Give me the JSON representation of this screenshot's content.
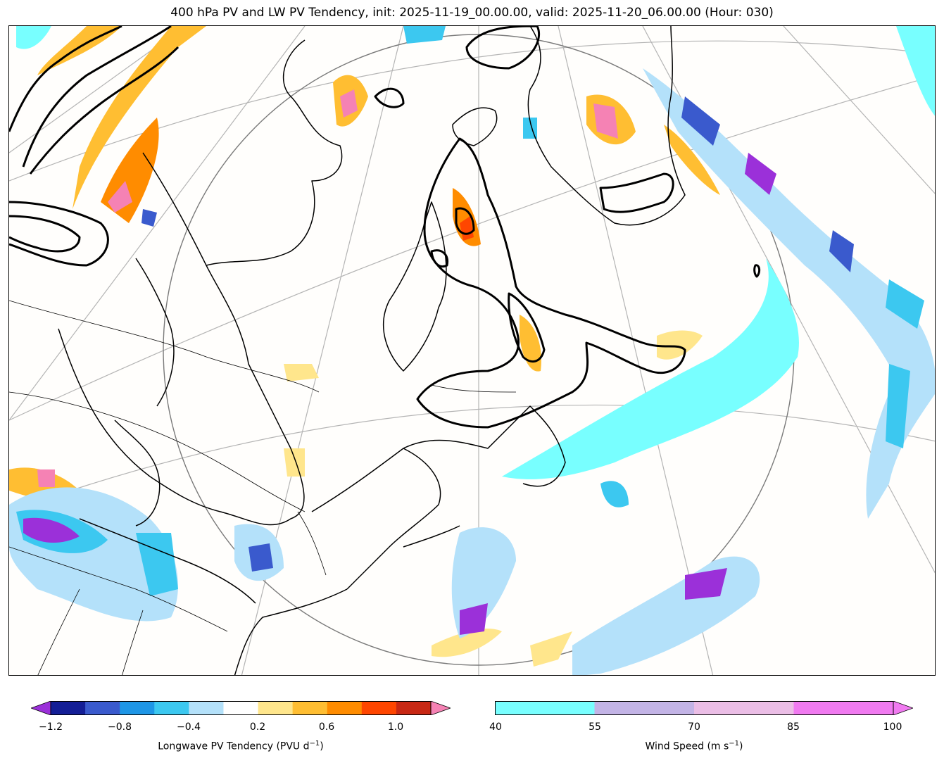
{
  "title": "400 hPa PV and LW PV Tendency, init: 2025-11-19_00.00.00, valid: 2025-11-20_06.00.00 (Hour: 030)",
  "colorbar_left": {
    "label": "Longwave PV Tendency (PVU d",
    "label_sup": "−1",
    "label_end": ")",
    "ticks": [
      "−1.2",
      "−0.8",
      "−0.4",
      "0.2",
      "0.6",
      "1.0"
    ],
    "colors": [
      "#9b30d9",
      "#141e96",
      "#3a5acd",
      "#1e96e6",
      "#3cc8f0",
      "#b4e1fa",
      "#ffffff",
      "#ffe68c",
      "#ffbe32",
      "#ff8c00",
      "#ff4600",
      "#c82814",
      "#f582b4"
    ]
  },
  "colorbar_right": {
    "label": "Wind Speed (m s",
    "label_sup": "−1",
    "label_end": ")",
    "ticks": [
      "40",
      "55",
      "70",
      "85",
      "100"
    ],
    "colors": [
      "#78ffff",
      "#c3b4e6",
      "#ebbee6",
      "#f07af0"
    ]
  },
  "map_colors": {
    "jet": "#78ffff",
    "pos_light": "#ffe68c",
    "pos_mid": "#ffbe32",
    "pos_strong": "#ff8c00",
    "pos_max": "#ff4600",
    "neg_light": "#b4e1fa",
    "neg_mid": "#3cc8f0",
    "neg_strong": "#3a5acd",
    "neg_max": "#9b30d9",
    "pink": "#f582b4",
    "pv_contour": "#000000",
    "grid": "#b4b4b4"
  }
}
